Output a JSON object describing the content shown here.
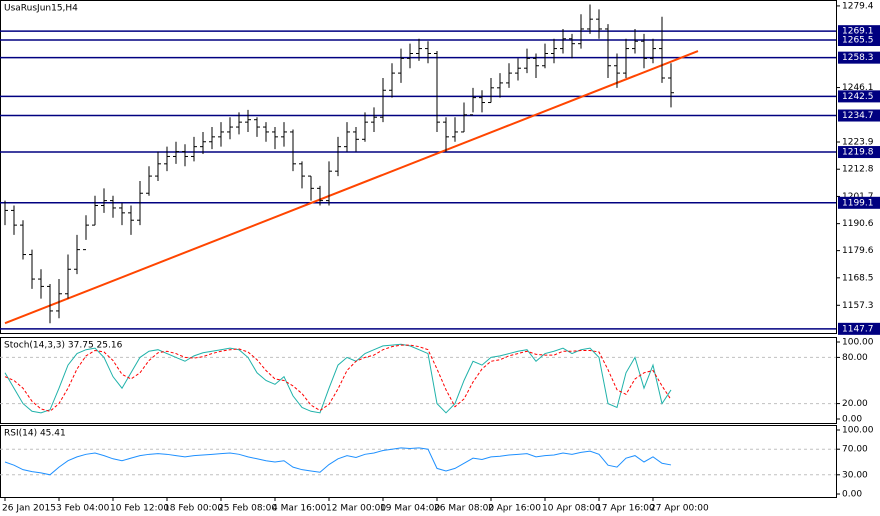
{
  "chart_data": [
    {
      "type": "ohlc",
      "title": "UsaRusJun15,H4",
      "color": "#000000",
      "categories": [
        "26 Jan 2015",
        null,
        null,
        null,
        null,
        null,
        "3 Feb 04:00",
        null,
        null,
        null,
        null,
        null,
        "10 Feb 12:00",
        null,
        null,
        null,
        null,
        null,
        "18 Feb 00:00",
        null,
        null,
        null,
        null,
        null,
        "25 Feb 08:00",
        null,
        null,
        null,
        null,
        null,
        "4 Mar 16:00",
        null,
        null,
        null,
        null,
        null,
        "12 Mar 00:00",
        null,
        null,
        null,
        null,
        null,
        "19 Mar 04:00",
        null,
        null,
        null,
        null,
        null,
        "26 Mar 08:00",
        null,
        null,
        null,
        null,
        null,
        "2 Apr 16:00",
        null,
        null,
        null,
        null,
        null,
        "10 Apr 08:00",
        null,
        null,
        null,
        null,
        null,
        "17 Apr 16:00",
        null,
        null,
        null,
        null,
        null,
        "27 Apr 00:00",
        null,
        null
      ],
      "closes": [
        1196,
        1190,
        1178,
        1168,
        1165,
        1155,
        1162,
        1172,
        1180,
        1190,
        1198,
        1200,
        1197,
        1195,
        1192,
        1203,
        1210,
        1215,
        1218,
        1220,
        1218,
        1222,
        1224,
        1226,
        1228,
        1230,
        1232,
        1233,
        1230,
        1228,
        1226,
        1228,
        1215,
        1210,
        1205,
        1200,
        1212,
        1222,
        1228,
        1225,
        1232,
        1234,
        1245,
        1252,
        1258,
        1260,
        1262,
        1260,
        1232,
        1226,
        1228,
        1235,
        1242,
        1240,
        1246,
        1248,
        1252,
        1254,
        1258,
        1255,
        1260,
        1262,
        1266,
        1264,
        1270,
        1274,
        1270,
        1255,
        1252,
        1262,
        1265,
        1258,
        1262,
        1250,
        1244
      ],
      "highs": [
        1200,
        1198,
        1192,
        1180,
        1172,
        1166,
        1168,
        1178,
        1186,
        1194,
        1202,
        1205,
        1202,
        1199,
        1198,
        1208,
        1214,
        1220,
        1222,
        1224,
        1223,
        1226,
        1228,
        1230,
        1232,
        1234,
        1236,
        1237,
        1234,
        1232,
        1230,
        1232,
        1229,
        1216,
        1210,
        1206,
        1216,
        1226,
        1232,
        1230,
        1236,
        1238,
        1250,
        1256,
        1262,
        1264,
        1266,
        1265,
        1261,
        1234,
        1234,
        1240,
        1246,
        1245,
        1250,
        1252,
        1256,
        1258,
        1262,
        1260,
        1264,
        1266,
        1270,
        1268,
        1276,
        1280,
        1278,
        1272,
        1260,
        1266,
        1270,
        1268,
        1266,
        1275,
        1256
      ],
      "lows": [
        1190,
        1186,
        1176,
        1164,
        1160,
        1150,
        1152,
        1160,
        1170,
        1184,
        1190,
        1195,
        1193,
        1190,
        1186,
        1190,
        1202,
        1208,
        1212,
        1215,
        1214,
        1216,
        1219,
        1221,
        1222,
        1225,
        1227,
        1228,
        1226,
        1224,
        1221,
        1222,
        1212,
        1205,
        1200,
        1198,
        1198,
        1210,
        1220,
        1220,
        1224,
        1228,
        1232,
        1242,
        1248,
        1254,
        1257,
        1256,
        1228,
        1220,
        1224,
        1228,
        1236,
        1236,
        1240,
        1242,
        1246,
        1249,
        1252,
        1250,
        1254,
        1256,
        1260,
        1258,
        1262,
        1268,
        1266,
        1250,
        1246,
        1250,
        1260,
        1254,
        1256,
        1248,
        1238
      ],
      "ylim": [
        1146,
        1281
      ],
      "yticks": [
        1279.4,
        1246.1,
        1223.9,
        1212.8,
        1201.7,
        1190.6,
        1179.6,
        1168.5,
        1157.3
      ],
      "levels": {
        "color": "#000080",
        "values": [
          1269.1,
          1265.5,
          1258.3,
          1242.5,
          1234.7,
          1219.8,
          1199.1,
          1147.7
        ]
      },
      "trendline": {
        "color": "#ff4500",
        "x": [
          0,
          77
        ],
        "values": [
          1150,
          1261
        ]
      }
    },
    {
      "type": "line",
      "title": "Stoch(14,3,3) 37.75 25.16",
      "series": [
        {
          "color": "#20b2aa",
          "style": "solid",
          "values": [
            60,
            40,
            20,
            10,
            8,
            12,
            40,
            70,
            85,
            90,
            92,
            80,
            55,
            40,
            60,
            80,
            88,
            90,
            85,
            80,
            75,
            82,
            86,
            88,
            90,
            92,
            90,
            80,
            60,
            50,
            45,
            55,
            30,
            15,
            10,
            8,
            40,
            70,
            80,
            75,
            85,
            90,
            95,
            96,
            97,
            95,
            90,
            85,
            20,
            8,
            20,
            50,
            75,
            70,
            80,
            82,
            85,
            88,
            90,
            75,
            85,
            88,
            92,
            85,
            90,
            92,
            80,
            20,
            15,
            60,
            80,
            40,
            70,
            20,
            37.75
          ]
        },
        {
          "color": "#ff0000",
          "style": "dashed",
          "values": [
            55,
            50,
            40,
            23,
            13,
            10,
            20,
            40,
            65,
            82,
            89,
            87,
            76,
            58,
            52,
            60,
            76,
            86,
            88,
            85,
            80,
            79,
            81,
            85,
            88,
            90,
            91,
            87,
            77,
            63,
            52,
            50,
            43,
            33,
            18,
            11,
            19,
            39,
            63,
            75,
            80,
            83,
            90,
            94,
            96,
            96,
            94,
            90,
            65,
            38,
            16,
            26,
            48,
            65,
            75,
            77,
            82,
            85,
            88,
            84,
            83,
            83,
            88,
            88,
            89,
            89,
            87,
            64,
            38,
            32,
            52,
            60,
            63,
            43,
            25.16
          ]
        }
      ],
      "ylim": [
        -5.2,
        105.2
      ],
      "yticks": [
        {
          "value": 100,
          "label": "100.00"
        },
        {
          "value": 80,
          "label": "80.00"
        },
        {
          "value": 20,
          "label": "20.00"
        },
        {
          "value": 0,
          "label": "0.00"
        }
      ],
      "levels": {
        "color": "#c0c0c0",
        "values": [
          80,
          20
        ]
      }
    },
    {
      "type": "line",
      "title": "RSI(14) 45.41",
      "series": [
        {
          "color": "#1e90ff",
          "style": "solid",
          "values": [
            50,
            45,
            38,
            35,
            33,
            30,
            42,
            52,
            58,
            62,
            64,
            60,
            55,
            52,
            56,
            60,
            62,
            63,
            62,
            60,
            58,
            60,
            61,
            62,
            63,
            64,
            62,
            58,
            55,
            52,
            50,
            52,
            42,
            38,
            36,
            34,
            46,
            55,
            60,
            57,
            62,
            64,
            68,
            70,
            72,
            71,
            72,
            70,
            40,
            36,
            40,
            48,
            56,
            54,
            58,
            59,
            61,
            62,
            63,
            58,
            60,
            61,
            64,
            62,
            65,
            67,
            62,
            45,
            42,
            56,
            60,
            50,
            58,
            48,
            45.41
          ]
        }
      ],
      "ylim": [
        -4.7,
        106.25
      ],
      "yticks": [
        {
          "value": 100,
          "label": "100.00"
        },
        {
          "value": 70,
          "label": "70.00"
        },
        {
          "value": 30,
          "label": "30.00"
        },
        {
          "value": 0,
          "label": "0.00"
        }
      ],
      "levels": {
        "color": "#c0c0c0",
        "values": [
          70,
          30
        ]
      }
    }
  ]
}
